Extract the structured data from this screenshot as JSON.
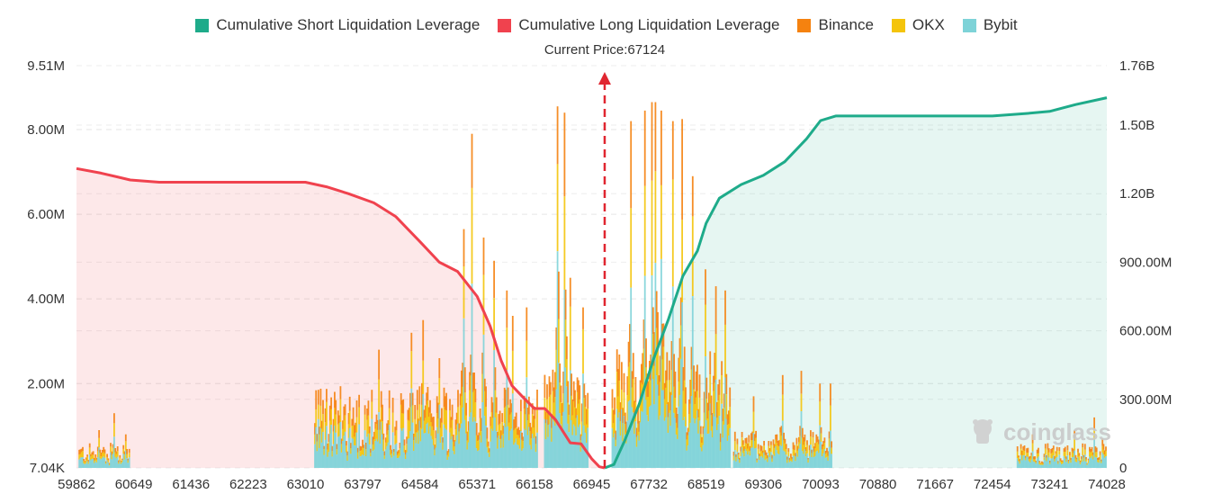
{
  "legend": {
    "items": [
      {
        "label": "Cumulative Short Liquidation Leverage",
        "color": "#1eab8a"
      },
      {
        "label": "Cumulative Long Liquidation Leverage",
        "color": "#f0424e"
      },
      {
        "label": "Binance",
        "color": "#f5820f"
      },
      {
        "label": "OKX",
        "color": "#f4c40b"
      },
      {
        "label": "Bybit",
        "color": "#7ed3d8"
      }
    ]
  },
  "current_price_label": "Current Price:67124",
  "watermark": "coinglass",
  "chart_data": {
    "type": "bar",
    "current_price": 67124,
    "x_range": [
      59862,
      74028
    ],
    "x_tick_labels": [
      "59862",
      "60649",
      "61436",
      "62223",
      "63010",
      "63797",
      "64584",
      "65371",
      "66158",
      "66945",
      "67732",
      "68519",
      "69306",
      "70093",
      "70880",
      "71667",
      "72454",
      "73241",
      "74028"
    ],
    "y_left": {
      "ticks": [
        {
          "v": 7040,
          "label": "7.04K"
        },
        {
          "v": 2000000,
          "label": "2.00M"
        },
        {
          "v": 4000000,
          "label": "4.00M"
        },
        {
          "v": 6000000,
          "label": "6.00M"
        },
        {
          "v": 8000000,
          "label": "8.00M"
        },
        {
          "v": 9510000,
          "label": "9.51M"
        }
      ],
      "range": [
        7040,
        9510000
      ]
    },
    "y_right": {
      "ticks": [
        {
          "v": 0,
          "label": "0"
        },
        {
          "v": 300000000,
          "label": "300.00M"
        },
        {
          "v": 600000000,
          "label": "600.00M"
        },
        {
          "v": 900000000,
          "label": "900.00M"
        },
        {
          "v": 1200000000,
          "label": "1.20B"
        },
        {
          "v": 1500000000,
          "label": "1.50B"
        },
        {
          "v": 1760000000,
          "label": "1.76B"
        }
      ],
      "range": [
        0,
        1760000000
      ]
    },
    "long_cumulative": {
      "name": "Cumulative Long Liquidation Leverage",
      "x": [
        59862,
        60200,
        60600,
        61000,
        61436,
        62223,
        63010,
        63300,
        63600,
        63950,
        64250,
        64584,
        64850,
        65100,
        65371,
        65550,
        65700,
        65850,
        66000,
        66158,
        66300,
        66450,
        66650,
        66800,
        66945,
        67050,
        67124
      ],
      "y": [
        1310000000,
        1290000000,
        1260000000,
        1250000000,
        1250000000,
        1250000000,
        1250000000,
        1230000000,
        1200000000,
        1160000000,
        1100000000,
        990000000,
        900000000,
        860000000,
        750000000,
        620000000,
        470000000,
        360000000,
        310000000,
        260000000,
        260000000,
        210000000,
        110000000,
        105000000,
        40000000,
        5000000,
        0
      ]
    },
    "short_cumulative": {
      "name": "Cumulative Short Liquidation Leverage",
      "x": [
        67124,
        67250,
        67400,
        67600,
        67800,
        68000,
        68200,
        68400,
        68519,
        68700,
        69000,
        69306,
        69600,
        69900,
        70093,
        70300,
        70880,
        71667,
        72454,
        72900,
        73241,
        73600,
        74028
      ],
      "y": [
        0,
        15000000,
        120000000,
        280000000,
        480000000,
        650000000,
        840000000,
        950000000,
        1070000000,
        1180000000,
        1240000000,
        1280000000,
        1340000000,
        1440000000,
        1520000000,
        1540000000,
        1540000000,
        1540000000,
        1540000000,
        1550000000,
        1560000000,
        1590000000,
        1620000000
      ]
    },
    "bar_clusters": [
      {
        "name": "low-left",
        "from": 59900,
        "to": 60600,
        "avg": 400000,
        "peaks": [
          [
            60380,
            1300000
          ],
          [
            60170,
            900000
          ],
          [
            60550,
            800000
          ]
        ]
      },
      {
        "name": "mid-left",
        "from": 63140,
        "to": 66200,
        "avg": 1300000,
        "peaks": [
          [
            64010,
            2800000
          ],
          [
            64470,
            3200000
          ],
          [
            64620,
            3500000
          ],
          [
            65180,
            5650000
          ],
          [
            65300,
            7900000
          ],
          [
            65460,
            5450000
          ],
          [
            65600,
            4900000
          ],
          [
            65780,
            4200000
          ],
          [
            66050,
            3800000
          ],
          [
            65850,
            3600000
          ],
          [
            64850,
            2600000
          ]
        ]
      },
      {
        "name": "center-left",
        "from": 66300,
        "to": 66900,
        "avg": 1600000,
        "peaks": [
          [
            66480,
            8550000
          ],
          [
            66580,
            8400000
          ],
          [
            66650,
            4500000
          ],
          [
            66830,
            3800000
          ]
        ]
      },
      {
        "name": "center-right",
        "from": 67230,
        "to": 68850,
        "avg": 1900000,
        "peaks": [
          [
            67480,
            8200000
          ],
          [
            67680,
            8450000
          ],
          [
            67780,
            8650000
          ],
          [
            67830,
            8650000
          ],
          [
            67910,
            8450000
          ],
          [
            68060,
            8200000
          ],
          [
            68190,
            8250000
          ],
          [
            68340,
            6900000
          ],
          [
            68510,
            4700000
          ],
          [
            68650,
            4300000
          ],
          [
            68780,
            4200000
          ]
        ]
      },
      {
        "name": "right-mid",
        "from": 68900,
        "to": 70250,
        "avg": 600000,
        "peaks": [
          [
            69170,
            1700000
          ],
          [
            69560,
            2200000
          ],
          [
            69820,
            2300000
          ],
          [
            70080,
            2000000
          ],
          [
            70230,
            2000000
          ]
        ]
      },
      {
        "name": "far-right",
        "from": 72800,
        "to": 74028,
        "avg": 400000,
        "peaks": [
          [
            73000,
            800000
          ],
          [
            73580,
            900000
          ],
          [
            73850,
            1200000
          ],
          [
            73970,
            700000
          ]
        ]
      }
    ]
  }
}
